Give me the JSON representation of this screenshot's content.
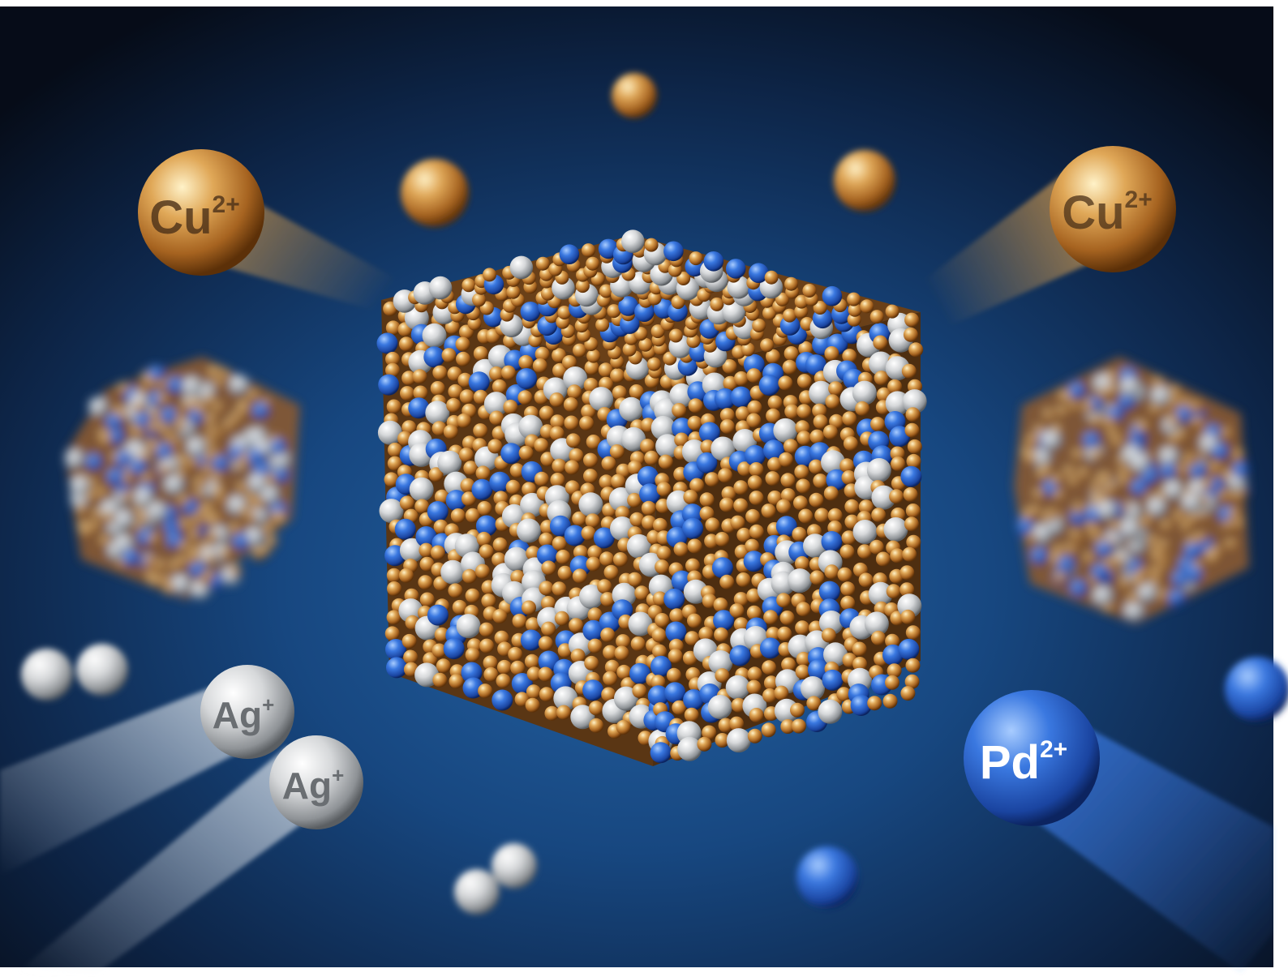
{
  "ions": {
    "cu_left": {
      "symbol": "Cu",
      "charge": "2+"
    },
    "cu_right": {
      "symbol": "Cu",
      "charge": "2+"
    },
    "ag_upper": {
      "symbol": "Ag",
      "charge": "+"
    },
    "ag_lower": {
      "symbol": "Ag",
      "charge": "+"
    },
    "pd_front": {
      "symbol": "Pd",
      "charge": "2+"
    }
  },
  "colors": {
    "background_center": "#1f5a96",
    "background_edge": "#08101d",
    "copper": "#c07830",
    "silver": "#d8dadc",
    "palladium_blue": "#2a62c4"
  }
}
